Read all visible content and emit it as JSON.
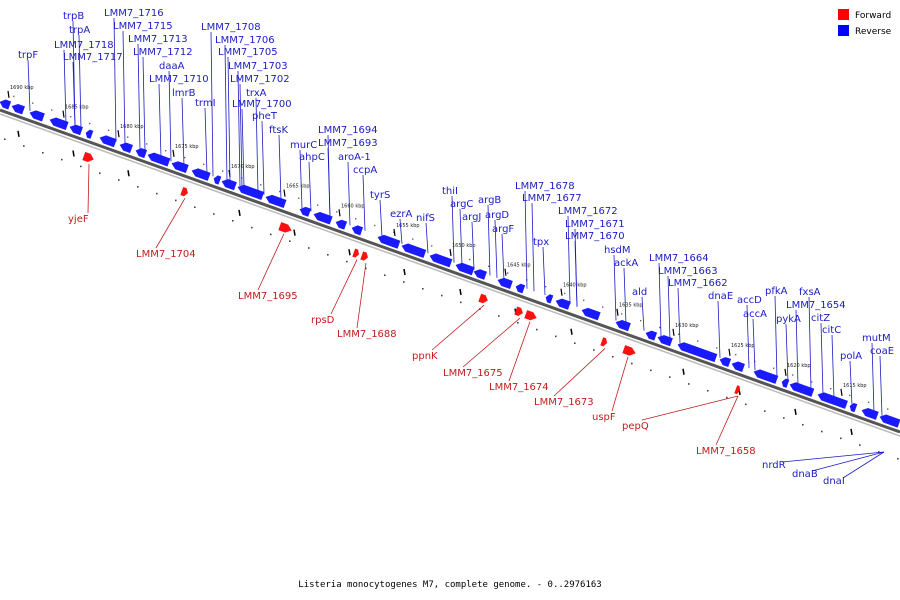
{
  "legend": {
    "forward_label": "Forward",
    "reverse_label": "Reverse",
    "forward_color": "#ff0000",
    "reverse_color": "#0000ff"
  },
  "caption": "Listeria monocytogenes M7, complete genome. - 0..2976163",
  "ticks": [
    "1690 kbp",
    "1685 kbp",
    "1680 kbp",
    "1675 kbp",
    "1670 kbp",
    "1665 kbp",
    "1660 kbp",
    "1655 kbp",
    "1650 kbp",
    "1645 kbp",
    "1640 kbp",
    "1635 kbp",
    "1630 kbp",
    "1625 kbp",
    "1620 kbp",
    "1615 kbp"
  ],
  "reverse_genes": [
    "trpB",
    "trpA",
    "trpF",
    "LMM7_1718",
    "LMM7_1717",
    "LMM7_1716",
    "LMM7_1715",
    "LMM7_1713",
    "LMM7_1712",
    "daaA",
    "LMM7_1710",
    "lmrB",
    "trmI",
    "LMM7_1708",
    "LMM7_1706",
    "LMM7_1705",
    "LMM7_1703",
    "LMM7_1702",
    "trxA",
    "LMM7_1700",
    "pheT",
    "ftsK",
    "murC",
    "ahpC",
    "LMM7_1694",
    "LMM7_1693",
    "aroA-1",
    "ccpA",
    "tyrS",
    "ezrA",
    "nifS",
    "thiI",
    "argC",
    "argJ",
    "argB",
    "argD",
    "argF",
    "LMM7_1678",
    "LMM7_1677",
    "tpx",
    "LMM7_1672",
    "LMM7_1671",
    "LMM7_1670",
    "hsdM",
    "ackA",
    "ald",
    "LMM7_1664",
    "LMM7_1663",
    "LMM7_1662",
    "dnaE",
    "accD",
    "accA",
    "pfkA",
    "pykA",
    "fxsA",
    "LMM7_1654",
    "citZ",
    "citC",
    "polA",
    "mutM",
    "coaE",
    "nrdR",
    "dnaB",
    "dnaI"
  ],
  "forward_genes": [
    "yjeF",
    "LMM7_1704",
    "LMM7_1695",
    "rpsD",
    "LMM7_1688",
    "ppnK",
    "LMM7_1675",
    "LMM7_1674",
    "LMM7_1673",
    "uspF",
    "pepQ",
    "LMM7_1658"
  ]
}
